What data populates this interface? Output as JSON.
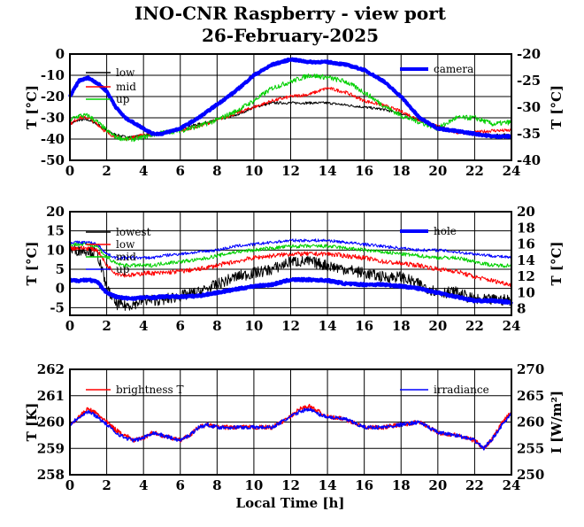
{
  "title": "INO-CNR Raspberry - view port",
  "subtitle": "26-February-2025",
  "xlabel": "Local Time [h]",
  "chart_data": [
    {
      "type": "line",
      "xlim": [
        0,
        24
      ],
      "xticks": [
        "0",
        "2",
        "4",
        "6",
        "8",
        "10",
        "12",
        "14",
        "16",
        "18",
        "20",
        "22",
        "24"
      ],
      "ylabel_left": "T [°C]",
      "ylabel_right": "T [°C]",
      "ylim_left": [
        -50,
        0
      ],
      "yticks_left": [
        "0",
        "-10",
        "-20",
        "-30",
        "-40",
        "-50"
      ],
      "ylim_right": [
        -40,
        -20
      ],
      "yticks_right": [
        "-20",
        "-25",
        "-30",
        "-35",
        "-40"
      ],
      "grid": true,
      "legend_left": "top-left",
      "legend_right": "top-right",
      "series": [
        {
          "name": "low",
          "axis": "left",
          "color": "#000000",
          "width": 1,
          "noise": 0.6,
          "x": [
            0,
            0.5,
            1,
            1.5,
            2,
            2.5,
            3,
            3.5,
            4,
            4.5,
            5,
            6,
            7,
            8,
            9,
            10,
            11,
            12,
            13,
            14,
            15,
            16,
            17,
            18,
            19,
            20,
            21,
            22,
            23,
            24
          ],
          "y": [
            -33,
            -31,
            -31,
            -33,
            -36,
            -38,
            -39,
            -39,
            -38,
            -38,
            -37,
            -35,
            -33,
            -31,
            -29,
            -25,
            -23,
            -23,
            -23,
            -23,
            -24,
            -25,
            -26,
            -28,
            -31,
            -34,
            -36,
            -38,
            -38,
            -38
          ]
        },
        {
          "name": "mid",
          "axis": "left",
          "color": "#ff0000",
          "width": 1,
          "noise": 0.8,
          "x": [
            0,
            0.5,
            1,
            1.5,
            2,
            2.5,
            3,
            3.5,
            4,
            4.5,
            5,
            6,
            7,
            8,
            9,
            10,
            11,
            12,
            13,
            14,
            15,
            16,
            17,
            18,
            19,
            20,
            21,
            22,
            23,
            24
          ],
          "y": [
            -33,
            -30,
            -30,
            -33,
            -37,
            -39,
            -40,
            -39,
            -38,
            -38,
            -37,
            -36,
            -34,
            -31,
            -28,
            -25,
            -22,
            -20,
            -19,
            -16,
            -18,
            -22,
            -24,
            -27,
            -31,
            -34,
            -37,
            -37,
            -36,
            -36
          ]
        },
        {
          "name": "up",
          "axis": "left",
          "color": "#00d000",
          "width": 1,
          "noise": 1.2,
          "x": [
            0,
            0.5,
            1,
            1.5,
            2,
            2.5,
            3,
            3.5,
            4,
            4.5,
            5,
            6,
            7,
            8,
            9,
            10,
            11,
            12,
            13,
            14,
            15,
            16,
            17,
            18,
            19,
            20,
            21,
            22,
            23,
            24
          ],
          "y": [
            -31,
            -29,
            -29,
            -32,
            -36,
            -39,
            -40,
            -40,
            -39,
            -38,
            -37,
            -36,
            -34,
            -31,
            -27,
            -22,
            -16,
            -13,
            -10,
            -11,
            -13,
            -18,
            -24,
            -29,
            -32,
            -35,
            -30,
            -30,
            -33,
            -32
          ]
        },
        {
          "name": "camera",
          "axis": "right",
          "color": "#0000ff",
          "width": 4,
          "noise": 0.15,
          "x": [
            0,
            0.5,
            1,
            1.5,
            2,
            2.5,
            3,
            3.5,
            4,
            4.5,
            5,
            6,
            7,
            8,
            9,
            10,
            11,
            12,
            13,
            14,
            15,
            16,
            17,
            18,
            19,
            20,
            21,
            22,
            23,
            24
          ],
          "y": [
            -28,
            -25,
            -24.5,
            -25.5,
            -27,
            -30,
            -32,
            -33,
            -34,
            -35,
            -35,
            -34,
            -32,
            -29.5,
            -27,
            -24,
            -22,
            -21,
            -21.5,
            -21.5,
            -22,
            -23,
            -25,
            -28,
            -32,
            -34,
            -34.5,
            -35,
            -35.5,
            -35.5
          ]
        }
      ]
    },
    {
      "type": "line",
      "xlim": [
        0,
        24
      ],
      "xticks": [
        "0",
        "2",
        "4",
        "6",
        "8",
        "10",
        "12",
        "14",
        "16",
        "18",
        "20",
        "22",
        "24"
      ],
      "ylabel_left": "T [°C]",
      "ylabel_right": "T [°C]",
      "ylim_left": [
        -7,
        20
      ],
      "yticks_left": [
        "20",
        "15",
        "10",
        "5",
        "0",
        "-5"
      ],
      "ylim_right": [
        7.2,
        20
      ],
      "yticks_right": [
        "20",
        "18",
        "16",
        "14",
        "12",
        "10",
        "8"
      ],
      "grid": true,
      "legend_left": "top-left",
      "legend_right": "top-right",
      "series": [
        {
          "name": "lowest",
          "axis": "left",
          "color": "#000000",
          "width": 1,
          "noise": 1.5,
          "x": [
            0,
            0.5,
            1,
            1.5,
            2,
            2.5,
            3,
            3.5,
            4,
            4.5,
            5,
            6,
            7,
            8,
            9,
            10,
            11,
            12,
            13,
            14,
            15,
            16,
            17,
            18,
            19,
            20,
            21,
            22,
            23,
            24
          ],
          "y": [
            10,
            10,
            10,
            9,
            0,
            -4,
            -4.5,
            -4,
            -3,
            -3,
            -3,
            -2,
            -1,
            1,
            3,
            4,
            5,
            7,
            7,
            6,
            5,
            4,
            3,
            3,
            1,
            -1,
            -1,
            -3,
            -3,
            -3
          ]
        },
        {
          "name": "low",
          "axis": "left",
          "color": "#ff0000",
          "width": 1,
          "noise": 0.6,
          "x": [
            0,
            0.5,
            1,
            1.5,
            2,
            2.5,
            3,
            3.5,
            4,
            4.5,
            5,
            6,
            7,
            8,
            9,
            10,
            11,
            12,
            13,
            14,
            15,
            16,
            17,
            18,
            19,
            20,
            21,
            22,
            23,
            24
          ],
          "y": [
            10.5,
            10.5,
            10.5,
            10,
            6,
            4,
            3.5,
            3.5,
            4,
            4,
            4,
            4.5,
            5,
            6,
            7,
            8,
            8.5,
            9,
            9,
            9,
            8.5,
            8,
            7,
            6.5,
            6,
            5,
            4.5,
            3,
            2,
            1
          ]
        },
        {
          "name": "mid",
          "axis": "left",
          "color": "#00d000",
          "width": 1,
          "noise": 0.5,
          "x": [
            0,
            0.5,
            1,
            1.5,
            2,
            2.5,
            3,
            3.5,
            4,
            4.5,
            5,
            6,
            7,
            8,
            9,
            10,
            11,
            12,
            13,
            14,
            15,
            16,
            17,
            18,
            19,
            20,
            21,
            22,
            23,
            24
          ],
          "y": [
            11.5,
            11.5,
            11.5,
            11,
            8,
            6.5,
            6,
            6,
            6,
            6,
            6.5,
            7,
            7.5,
            8.5,
            9.5,
            10,
            10.5,
            11,
            11,
            11,
            10.5,
            10,
            9.5,
            9,
            8.5,
            8,
            8,
            7,
            6,
            6
          ]
        },
        {
          "name": "up",
          "axis": "left",
          "color": "#0000ff",
          "width": 1,
          "noise": 0.4,
          "x": [
            0,
            0.5,
            1,
            1.5,
            2,
            2.5,
            3,
            3.5,
            4,
            4.5,
            5,
            6,
            7,
            8,
            9,
            10,
            11,
            12,
            13,
            14,
            15,
            16,
            17,
            18,
            19,
            20,
            21,
            22,
            23,
            24
          ],
          "y": [
            12,
            12,
            12,
            11.5,
            9,
            8,
            8,
            8,
            8,
            8,
            8.5,
            9,
            9.5,
            10,
            11,
            11.5,
            12,
            12.5,
            12.5,
            12.5,
            12,
            11.5,
            11,
            10.5,
            10,
            10,
            9.5,
            9,
            8.5,
            8
          ]
        },
        {
          "name": "hole",
          "axis": "right",
          "color": "#0000ff",
          "width": 4,
          "noise": 0.12,
          "x": [
            0,
            0.5,
            1,
            1.5,
            2,
            2.5,
            3,
            3.5,
            4,
            4.5,
            5,
            6,
            7,
            8,
            9,
            10,
            11,
            12,
            13,
            14,
            15,
            16,
            17,
            18,
            19,
            20,
            21,
            22,
            23,
            24
          ],
          "y": [
            11.5,
            11.5,
            11.6,
            11.3,
            10,
            9.5,
            9.3,
            9.3,
            9.4,
            9.4,
            9.5,
            9.5,
            9.6,
            10,
            10.4,
            10.8,
            11,
            11.6,
            11.6,
            11.5,
            11.1,
            11,
            11,
            10.8,
            10.5,
            10,
            9.5,
            9,
            9,
            8.8
          ]
        }
      ]
    },
    {
      "type": "line",
      "xlim": [
        0,
        24
      ],
      "xticks": [
        "0",
        "2",
        "4",
        "6",
        "8",
        "10",
        "12",
        "14",
        "16",
        "18",
        "20",
        "22",
        "24"
      ],
      "ylabel_left": "T [K]",
      "ylabel_right": "I [W/m²]",
      "ylim_left": [
        258,
        262
      ],
      "yticks_left": [
        "262",
        "261",
        "260",
        "259",
        "258"
      ],
      "ylim_right": [
        250,
        270
      ],
      "yticks_right": [
        "270",
        "265",
        "260",
        "255",
        "250"
      ],
      "grid": true,
      "legend_left": "top-left",
      "legend_right": "top-right",
      "series": [
        {
          "name": "brightness T",
          "axis": "left",
          "color": "#ff0000",
          "width": 1.4,
          "noise": 0.08,
          "x": [
            0,
            0.5,
            1,
            1.5,
            2,
            2.5,
            3,
            3.5,
            4,
            4.5,
            5,
            5.5,
            6,
            6.5,
            7,
            7.5,
            8,
            9,
            10,
            11,
            12,
            12.5,
            13,
            13.5,
            14,
            15,
            16,
            17,
            18,
            19,
            20,
            21,
            22,
            22.5,
            23,
            23.5,
            24
          ],
          "y": [
            259.9,
            260.2,
            260.5,
            260.3,
            260,
            259.7,
            259.5,
            259.3,
            259.4,
            259.6,
            259.5,
            259.4,
            259.3,
            259.5,
            259.8,
            259.9,
            259.8,
            259.8,
            259.8,
            259.8,
            260.2,
            260.5,
            260.6,
            260.4,
            260.2,
            260.1,
            259.8,
            259.8,
            259.9,
            260,
            259.6,
            259.5,
            259.3,
            259,
            259.4,
            260,
            260.4
          ]
        },
        {
          "name": "irradiance",
          "axis": "right",
          "color": "#0000ff",
          "width": 1.4,
          "noise": 0.35,
          "x": [
            0,
            0.5,
            1,
            1.5,
            2,
            2.5,
            3,
            3.5,
            4,
            4.5,
            5,
            5.5,
            6,
            6.5,
            7,
            7.5,
            8,
            9,
            10,
            11,
            12,
            12.5,
            13,
            13.5,
            14,
            15,
            16,
            17,
            18,
            19,
            20,
            21,
            22,
            22.5,
            23,
            23.5,
            24
          ],
          "y": [
            259.5,
            261,
            262,
            261,
            259.5,
            258,
            257,
            256.5,
            257,
            258,
            257.5,
            257,
            256.5,
            257.5,
            259,
            259.5,
            259,
            259,
            259,
            259,
            261,
            262,
            262.5,
            261.5,
            261,
            260.5,
            259,
            259,
            259.5,
            260,
            258,
            257.5,
            256.5,
            255,
            257,
            259.5,
            261.5
          ]
        }
      ]
    }
  ]
}
